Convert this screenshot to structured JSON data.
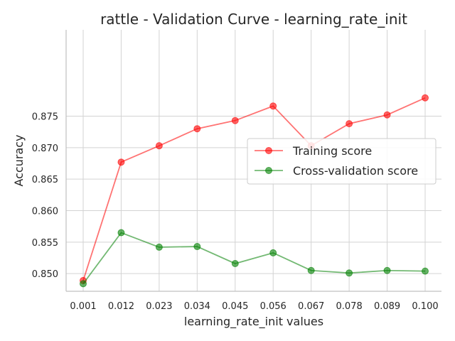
{
  "chart_data": {
    "type": "line",
    "title": "rattle - Validation Curve - learning_rate_init",
    "xlabel": "learning_rate_init values",
    "ylabel": "Accuracy",
    "categories": [
      "0.001",
      "0.012",
      "0.023",
      "0.034",
      "0.045",
      "0.056",
      "0.067",
      "0.078",
      "0.089",
      "0.100"
    ],
    "ylim": [
      0.8472,
      0.8887
    ],
    "yticks": [
      0.85,
      0.855,
      0.86,
      0.865,
      0.87,
      0.875
    ],
    "ytick_labels": [
      "0.850",
      "0.855",
      "0.860",
      "0.865",
      "0.870",
      "0.875"
    ],
    "grid": true,
    "legend_position": "center-right",
    "series": [
      {
        "name": "Training score",
        "color": "#ff0000",
        "values": [
          0.8489,
          0.8677,
          0.8703,
          0.873,
          0.8743,
          0.8766,
          0.8703,
          0.8738,
          0.8752,
          0.8779
        ]
      },
      {
        "name": "Cross-validation score",
        "color": "#008000",
        "values": [
          0.8484,
          0.8565,
          0.8542,
          0.8543,
          0.8516,
          0.8533,
          0.8505,
          0.8501,
          0.8505,
          0.8504
        ]
      }
    ]
  }
}
